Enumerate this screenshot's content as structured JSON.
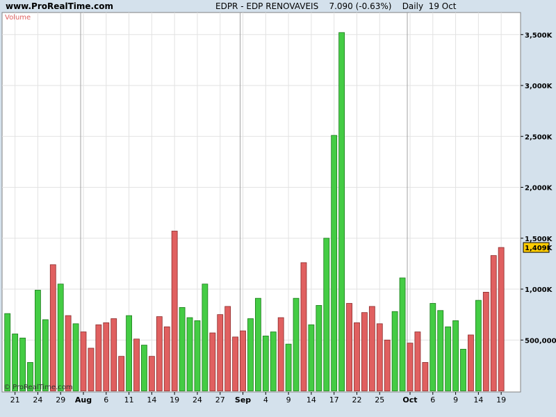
{
  "header": {
    "site": "www.ProRealTime.com",
    "title": "EDPR - EDP RENOVAVEIS    7.090 (-0.63%)    Daily  19 Oct"
  },
  "panel": {
    "label": "Volume",
    "watermark": "© ProRealTime.com"
  },
  "colors": {
    "up": "#44cc44",
    "down": "#e06060",
    "up_stroke": "#1a7a1a",
    "down_stroke": "#8a2a2a",
    "current_label_bg": "#ffcc00"
  },
  "chart_data": {
    "type": "bar",
    "title": "EDPR - EDP RENOVAVEIS",
    "ylim": [
      0,
      3700000
    ],
    "y_ticks": [
      {
        "value": 500000,
        "label": "500,000"
      },
      {
        "value": 1000000,
        "label": "1,000K"
      },
      {
        "value": 1500000,
        "label": "1,500K"
      },
      {
        "value": 2000000,
        "label": "2,000K"
      },
      {
        "value": 2500000,
        "label": "2,500K"
      },
      {
        "value": 3000000,
        "label": "3,000K"
      },
      {
        "value": 3500000,
        "label": "3,500K"
      }
    ],
    "current_value_label": "1,409K",
    "current_value": 1409000,
    "x_labels": [
      {
        "index": 1,
        "label": "21",
        "month": false
      },
      {
        "index": 4,
        "label": "24",
        "month": false
      },
      {
        "index": 7,
        "label": "29",
        "month": false
      },
      {
        "index": 10,
        "label": "Aug",
        "month": true
      },
      {
        "index": 13,
        "label": "6",
        "month": false
      },
      {
        "index": 16,
        "label": "11",
        "month": false
      },
      {
        "index": 19,
        "label": "14",
        "month": false
      },
      {
        "index": 22,
        "label": "19",
        "month": false
      },
      {
        "index": 25,
        "label": "24",
        "month": false
      },
      {
        "index": 28,
        "label": "27",
        "month": false
      },
      {
        "index": 31,
        "label": "Sep",
        "month": true
      },
      {
        "index": 34,
        "label": "4",
        "month": false
      },
      {
        "index": 37,
        "label": "9",
        "month": false
      },
      {
        "index": 40,
        "label": "14",
        "month": false
      },
      {
        "index": 43,
        "label": "17",
        "month": false
      },
      {
        "index": 46,
        "label": "22",
        "month": false
      },
      {
        "index": 49,
        "label": "25",
        "month": false
      },
      {
        "index": 53,
        "label": "Oct",
        "month": true
      },
      {
        "index": 56,
        "label": "6",
        "month": false
      },
      {
        "index": 59,
        "label": "9",
        "month": false
      },
      {
        "index": 62,
        "label": "14",
        "month": false
      },
      {
        "index": 65,
        "label": "19",
        "month": false
      }
    ],
    "month_separators": [
      10,
      31,
      53
    ],
    "bars": [
      {
        "value": 760000,
        "dir": "up"
      },
      {
        "value": 560000,
        "dir": "up"
      },
      {
        "value": 520000,
        "dir": "up"
      },
      {
        "value": 280000,
        "dir": "up"
      },
      {
        "value": 990000,
        "dir": "up"
      },
      {
        "value": 700000,
        "dir": "up"
      },
      {
        "value": 1240000,
        "dir": "down"
      },
      {
        "value": 1050000,
        "dir": "up"
      },
      {
        "value": 740000,
        "dir": "down"
      },
      {
        "value": 660000,
        "dir": "up"
      },
      {
        "value": 580000,
        "dir": "down"
      },
      {
        "value": 420000,
        "dir": "down"
      },
      {
        "value": 650000,
        "dir": "down"
      },
      {
        "value": 670000,
        "dir": "down"
      },
      {
        "value": 710000,
        "dir": "down"
      },
      {
        "value": 340000,
        "dir": "down"
      },
      {
        "value": 740000,
        "dir": "up"
      },
      {
        "value": 510000,
        "dir": "down"
      },
      {
        "value": 450000,
        "dir": "up"
      },
      {
        "value": 340000,
        "dir": "down"
      },
      {
        "value": 730000,
        "dir": "down"
      },
      {
        "value": 630000,
        "dir": "down"
      },
      {
        "value": 1570000,
        "dir": "down"
      },
      {
        "value": 820000,
        "dir": "up"
      },
      {
        "value": 720000,
        "dir": "up"
      },
      {
        "value": 690000,
        "dir": "up"
      },
      {
        "value": 1050000,
        "dir": "up"
      },
      {
        "value": 570000,
        "dir": "down"
      },
      {
        "value": 750000,
        "dir": "down"
      },
      {
        "value": 830000,
        "dir": "down"
      },
      {
        "value": 530000,
        "dir": "down"
      },
      {
        "value": 590000,
        "dir": "down"
      },
      {
        "value": 710000,
        "dir": "up"
      },
      {
        "value": 910000,
        "dir": "up"
      },
      {
        "value": 540000,
        "dir": "up"
      },
      {
        "value": 580000,
        "dir": "up"
      },
      {
        "value": 720000,
        "dir": "down"
      },
      {
        "value": 460000,
        "dir": "up"
      },
      {
        "value": 910000,
        "dir": "up"
      },
      {
        "value": 1260000,
        "dir": "down"
      },
      {
        "value": 650000,
        "dir": "up"
      },
      {
        "value": 840000,
        "dir": "up"
      },
      {
        "value": 1500000,
        "dir": "up"
      },
      {
        "value": 2510000,
        "dir": "up"
      },
      {
        "value": 3520000,
        "dir": "up"
      },
      {
        "value": 860000,
        "dir": "down"
      },
      {
        "value": 670000,
        "dir": "down"
      },
      {
        "value": 770000,
        "dir": "down"
      },
      {
        "value": 830000,
        "dir": "down"
      },
      {
        "value": 660000,
        "dir": "down"
      },
      {
        "value": 500000,
        "dir": "down"
      },
      {
        "value": 780000,
        "dir": "up"
      },
      {
        "value": 1110000,
        "dir": "up"
      },
      {
        "value": 470000,
        "dir": "down"
      },
      {
        "value": 580000,
        "dir": "down"
      },
      {
        "value": 280000,
        "dir": "down"
      },
      {
        "value": 860000,
        "dir": "up"
      },
      {
        "value": 790000,
        "dir": "up"
      },
      {
        "value": 630000,
        "dir": "up"
      },
      {
        "value": 690000,
        "dir": "up"
      },
      {
        "value": 410000,
        "dir": "up"
      },
      {
        "value": 550000,
        "dir": "down"
      },
      {
        "value": 890000,
        "dir": "up"
      },
      {
        "value": 970000,
        "dir": "down"
      },
      {
        "value": 1330000,
        "dir": "down"
      },
      {
        "value": 1409000,
        "dir": "down"
      }
    ]
  }
}
